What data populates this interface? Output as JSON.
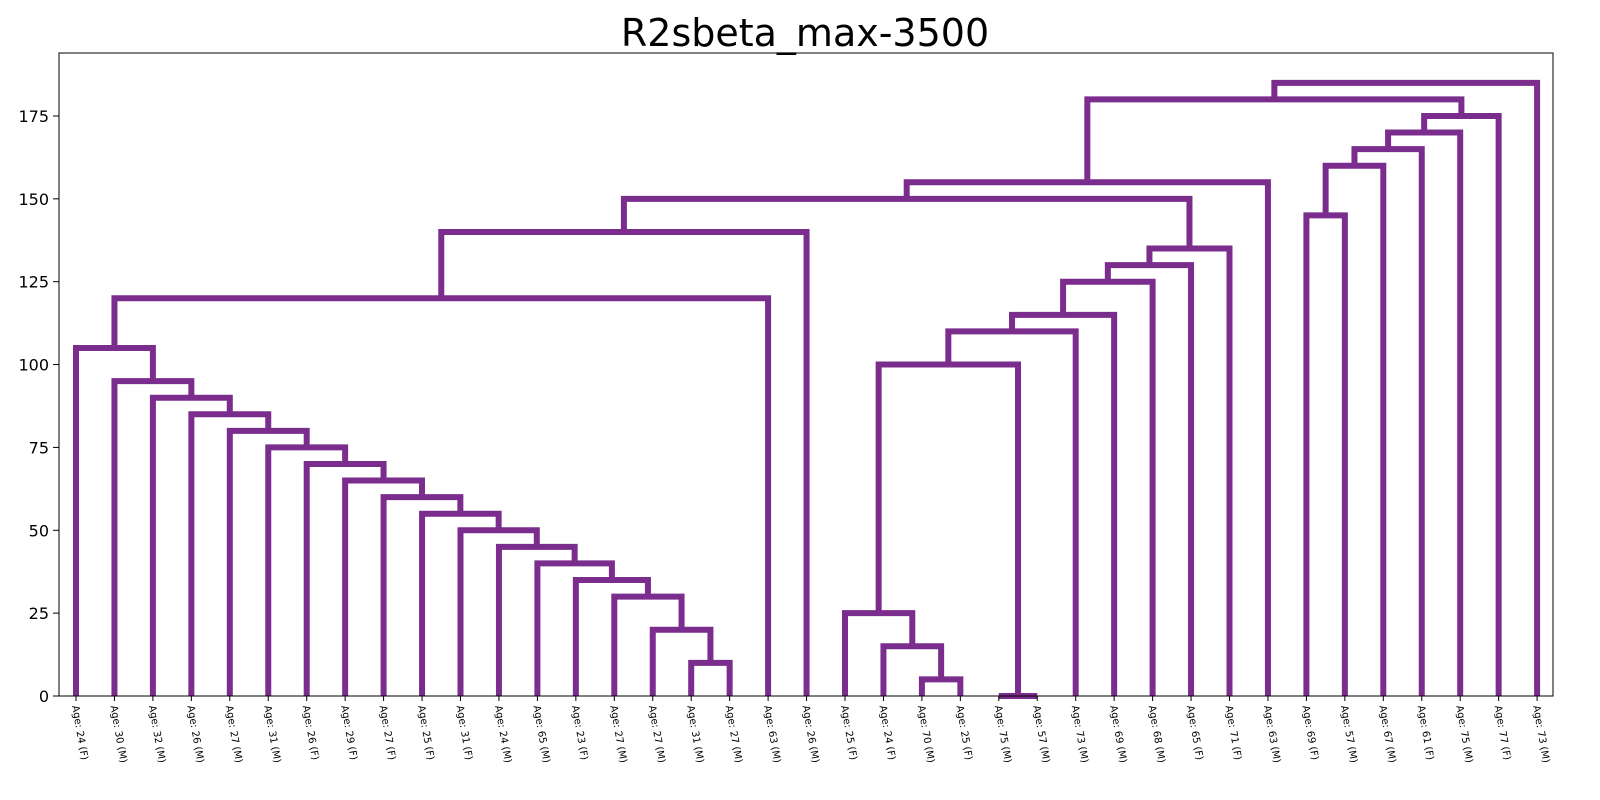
{
  "chart_data": {
    "type": "dendrogram",
    "title": "R2sbeta_max-3500",
    "xlabel": "",
    "ylabel": "",
    "ylim": [
      0,
      194
    ],
    "yticks": [
      0,
      25,
      50,
      75,
      100,
      125,
      150,
      175
    ],
    "grid": false,
    "link_color": "#7b2d8e",
    "leaves": [
      "Age: 24 (F)",
      "Age: 30 (M)",
      "Age: 32 (M)",
      "Age: 26 (M)",
      "Age: 27 (M)",
      "Age: 31 (M)",
      "Age: 26 (F)",
      "Age: 29 (F)",
      "Age: 27 (F)",
      "Age: 25 (F)",
      "Age: 31 (F)",
      "Age: 24 (M)",
      "Age: 65 (M)",
      "Age: 23 (F)",
      "Age: 27 (M)",
      "Age: 27 (M)",
      "Age: 31 (M)",
      "Age: 27 (M)",
      "Age: 63 (M)",
      "Age: 26 (M)",
      "Age: 25 (F)",
      "Age: 24 (F)",
      "Age: 70 (M)",
      "Age: 25 (F)",
      "Age: 75 (M)",
      "Age: 57 (M)",
      "Age: 73 (M)",
      "Age: 69 (M)",
      "Age: 68 (M)",
      "Age: 65 (F)",
      "Age: 71 (F)",
      "Age: 63 (M)",
      "Age: 69 (F)",
      "Age: 57 (M)",
      "Age: 67 (M)",
      "Age: 61 (F)",
      "Age: 75 (M)",
      "Age: 77 (F)",
      "Age: 73 (M)"
    ],
    "merges": [
      {
        "a": 16,
        "b": 17,
        "height": 10
      },
      {
        "a": 15,
        "b": "m0",
        "height": 20
      },
      {
        "a": 14,
        "b": "m1",
        "height": 30
      },
      {
        "a": 13,
        "b": "m2",
        "height": 35
      },
      {
        "a": 12,
        "b": "m3",
        "height": 40
      },
      {
        "a": 11,
        "b": "m4",
        "height": 45
      },
      {
        "a": 10,
        "b": "m5",
        "height": 50
      },
      {
        "a": 9,
        "b": "m6",
        "height": 55
      },
      {
        "a": 8,
        "b": "m7",
        "height": 60
      },
      {
        "a": 7,
        "b": "m8",
        "height": 65
      },
      {
        "a": 6,
        "b": "m9",
        "height": 70
      },
      {
        "a": 5,
        "b": "m10",
        "height": 75
      },
      {
        "a": 4,
        "b": "m11",
        "height": 80
      },
      {
        "a": 3,
        "b": "m12",
        "height": 85
      },
      {
        "a": 2,
        "b": "m13",
        "height": 90
      },
      {
        "a": 1,
        "b": "m14",
        "height": 95
      },
      {
        "a": 0,
        "b": "m15",
        "height": 105
      },
      {
        "a": "m16",
        "b": 18,
        "height": 120
      },
      {
        "a": "m17",
        "b": 19,
        "height": 140
      },
      {
        "a": 22,
        "b": 23,
        "height": 5
      },
      {
        "a": 21,
        "b": "m19",
        "height": 15
      },
      {
        "a": 20,
        "b": "m20",
        "height": 25
      },
      {
        "a": 24,
        "b": 25,
        "height": 0
      },
      {
        "a": "m21",
        "b": "m22",
        "height": 100
      },
      {
        "a": "m23",
        "b": 26,
        "height": 110
      },
      {
        "a": "m24",
        "b": 27,
        "height": 115
      },
      {
        "a": "m25",
        "b": 28,
        "height": 125
      },
      {
        "a": "m26",
        "b": 29,
        "height": 130
      },
      {
        "a": "m27",
        "b": 30,
        "height": 135
      },
      {
        "a": "m18",
        "b": "m28",
        "height": 150
      },
      {
        "a": "m29",
        "b": 31,
        "height": 155
      },
      {
        "a": 32,
        "b": 33,
        "height": 145
      },
      {
        "a": "m31",
        "b": 34,
        "height": 160
      },
      {
        "a": "m32",
        "b": 35,
        "height": 165
      },
      {
        "a": "m33",
        "b": 36,
        "height": 170
      },
      {
        "a": "m34",
        "b": 37,
        "height": 175
      },
      {
        "a": "m30",
        "b": "m35",
        "height": 180
      },
      {
        "a": "m36",
        "b": 38,
        "height": 185
      }
    ]
  }
}
